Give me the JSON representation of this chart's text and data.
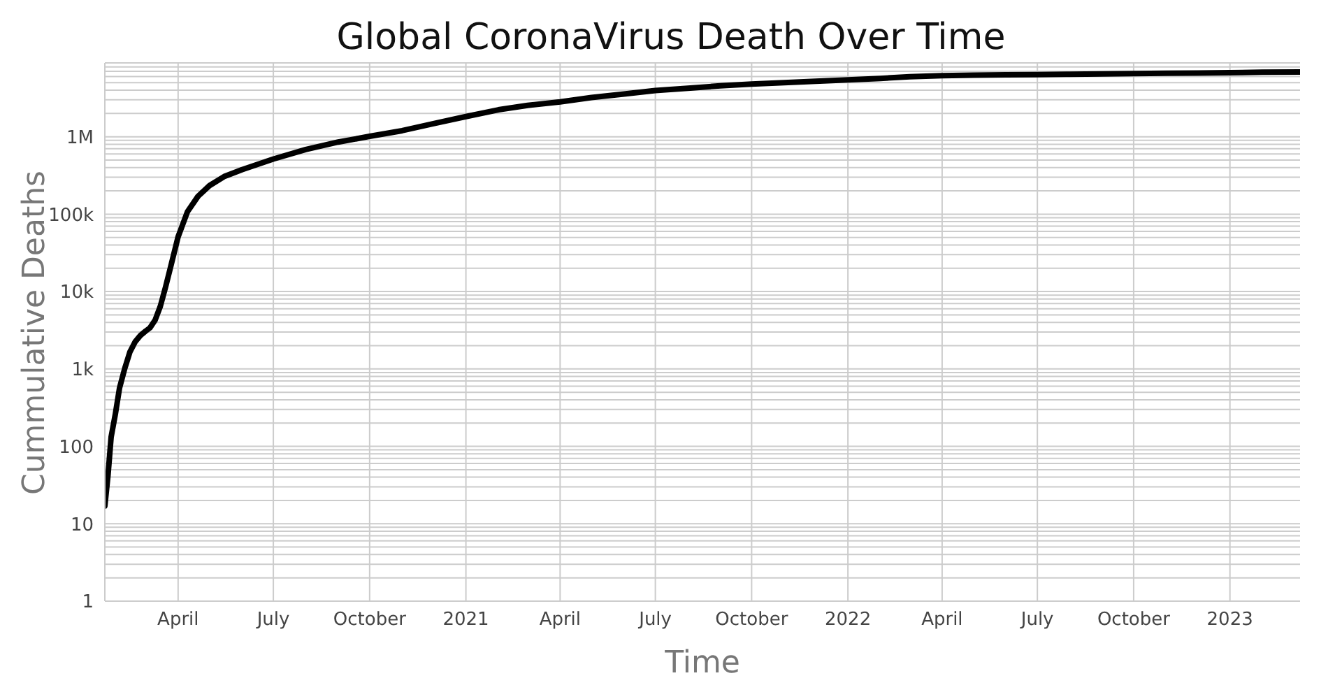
{
  "chart_data": {
    "type": "line",
    "title": "Global CoronaVirus Death Over Time",
    "xlabel": "Time",
    "ylabel": "Cummulative Deaths",
    "log": "y",
    "grid": true,
    "marker": "none",
    "line_style": "solid",
    "x": [
      "2020-01-22",
      "2020-01-25",
      "2020-01-28",
      "2020-02-01",
      "2020-02-05",
      "2020-02-10",
      "2020-02-15",
      "2020-02-20",
      "2020-02-25",
      "2020-03-01",
      "2020-03-05",
      "2020-03-10",
      "2020-03-15",
      "2020-03-20",
      "2020-03-25",
      "2020-04-01",
      "2020-04-10",
      "2020-04-20",
      "2020-05-01",
      "2020-05-15",
      "2020-06-01",
      "2020-07-01",
      "2020-08-01",
      "2020-09-01",
      "2020-10-01",
      "2020-11-01",
      "2020-12-01",
      "2021-01-01",
      "2021-02-01",
      "2021-03-01",
      "2021-04-01",
      "2021-05-01",
      "2021-06-01",
      "2021-07-01",
      "2021-08-01",
      "2021-09-01",
      "2021-10-01",
      "2021-11-01",
      "2021-12-01",
      "2022-01-01",
      "2022-02-01",
      "2022-03-01",
      "2022-04-01",
      "2022-05-01",
      "2022-06-01",
      "2022-07-01",
      "2022-08-01",
      "2022-09-01",
      "2022-10-01",
      "2022-11-01",
      "2022-12-01",
      "2023-01-01",
      "2023-02-01",
      "2023-03-09"
    ],
    "series": [
      {
        "color": "#000000",
        "values": [
          17,
          42,
          132,
          259,
          565,
          1013,
          1666,
          2247,
          2708,
          3085,
          3387,
          4262,
          6440,
          11399,
          21181,
          51000,
          108000,
          170000,
          234000,
          306000,
          375000,
          516000,
          684000,
          855000,
          1013000,
          1198000,
          1475000,
          1823000,
          2231000,
          2544000,
          2822000,
          3215000,
          3566000,
          3950000,
          4240000,
          4553000,
          4806000,
          5007000,
          5226000,
          5440000,
          5680000,
          5973000,
          6160000,
          6260000,
          6310000,
          6350000,
          6430000,
          6500000,
          6560000,
          6610000,
          6650000,
          6720000,
          6820000,
          6880000
        ]
      }
    ],
    "xlim": [
      "2020-01-22",
      "2023-03-09"
    ],
    "xticks": [
      {
        "value": "2020-04-01",
        "label": "April"
      },
      {
        "value": "2020-07-01",
        "label": "July"
      },
      {
        "value": "2020-10-01",
        "label": "October"
      },
      {
        "value": "2021-01-01",
        "label": "2021"
      },
      {
        "value": "2021-04-01",
        "label": "April"
      },
      {
        "value": "2021-07-01",
        "label": "July"
      },
      {
        "value": "2021-10-01",
        "label": "October"
      },
      {
        "value": "2022-01-01",
        "label": "2022"
      },
      {
        "value": "2022-04-01",
        "label": "April"
      },
      {
        "value": "2022-07-01",
        "label": "July"
      },
      {
        "value": "2022-10-01",
        "label": "October"
      },
      {
        "value": "2023-01-01",
        "label": "2023"
      }
    ],
    "ylim": [
      1,
      9000000
    ],
    "yticks": [
      1,
      10,
      100,
      {
        "value": 1000,
        "label": "1k"
      },
      {
        "value": 10000,
        "label": "10k"
      },
      {
        "value": 100000,
        "label": "100k"
      },
      {
        "value": 1000000,
        "label": "1M"
      }
    ]
  }
}
